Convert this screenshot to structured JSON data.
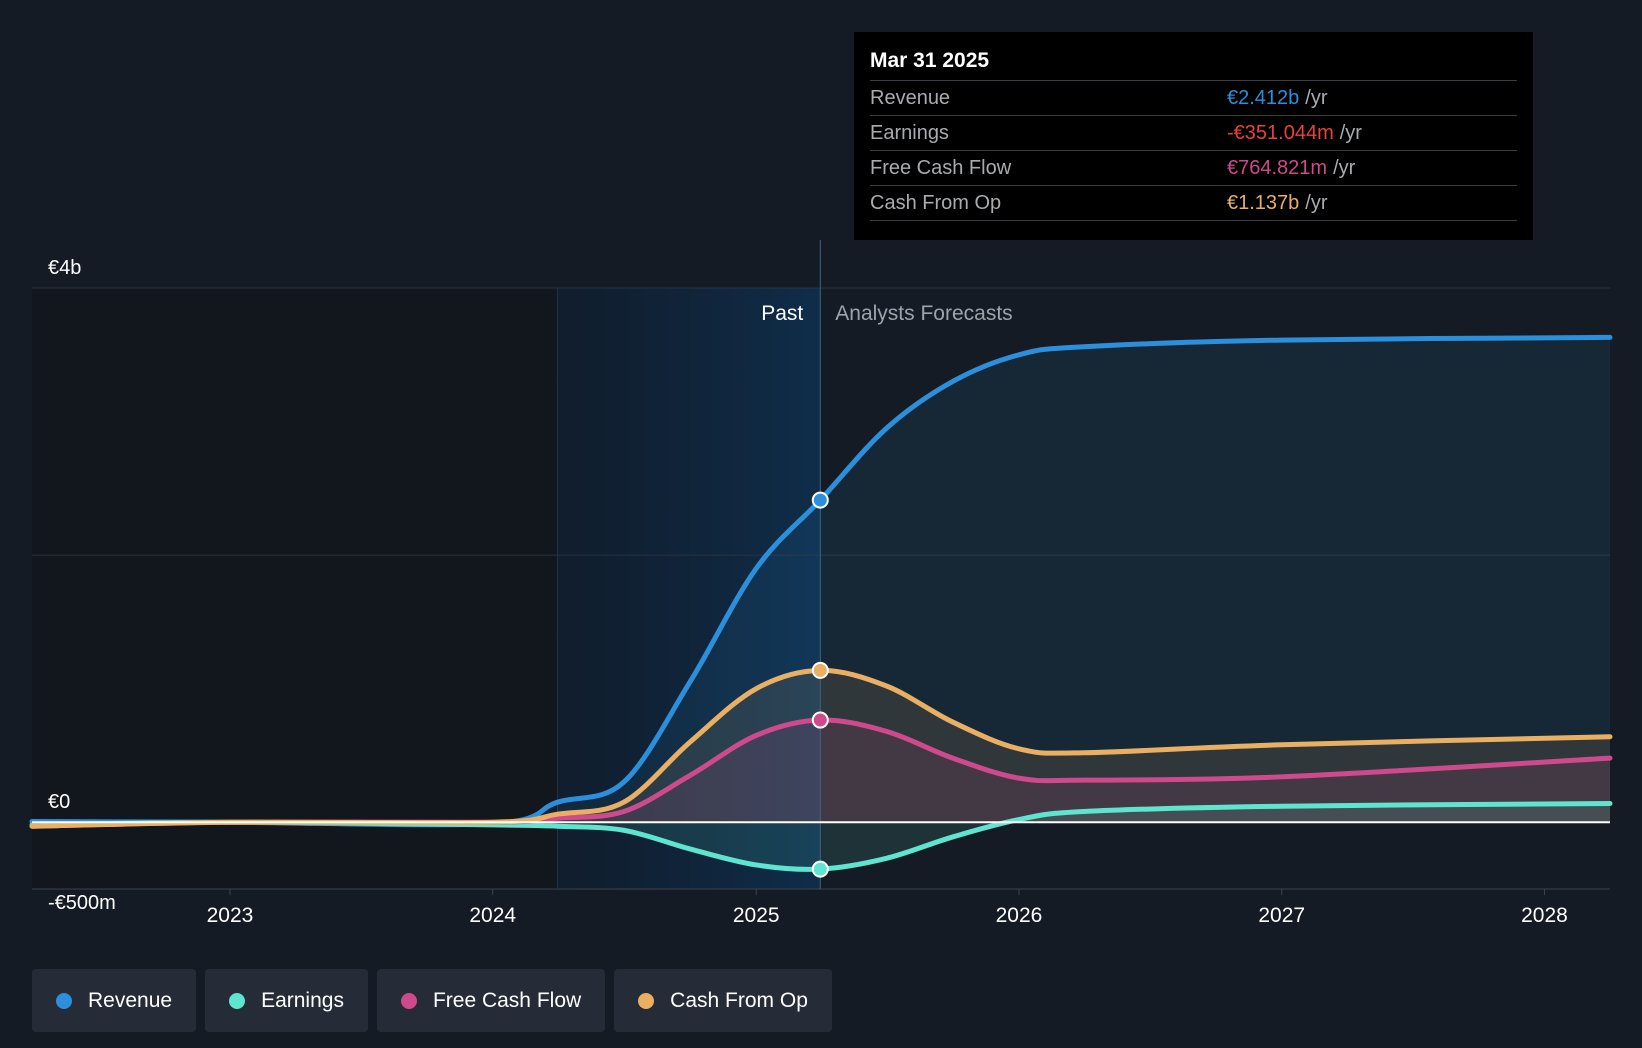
{
  "tooltip": {
    "date": "Mar 31 2025",
    "rows": [
      {
        "label": "Revenue",
        "value": "€2.412b",
        "unit": "/yr",
        "color": "#2b8fdb"
      },
      {
        "label": "Earnings",
        "value": "-€351.044m",
        "unit": "/yr",
        "color": "#e8413e"
      },
      {
        "label": "Free Cash Flow",
        "value": "€764.821m",
        "unit": "/yr",
        "color": "#cf4a8c"
      },
      {
        "label": "Cash From Op",
        "value": "€1.137b",
        "unit": "/yr",
        "color": "#e9b063"
      }
    ]
  },
  "legend": [
    {
      "label": "Revenue",
      "color": "#2b8fdb"
    },
    {
      "label": "Earnings",
      "color": "#5ee4cf"
    },
    {
      "label": "Free Cash Flow",
      "color": "#cf4a8c"
    },
    {
      "label": "Cash From Op",
      "color": "#e9b063"
    }
  ],
  "chart_data": {
    "type": "line",
    "past_label": "Past",
    "forecast_label": "Analysts Forecasts",
    "y_tick_labels": [
      {
        "value": 4000,
        "label": "€4b"
      },
      {
        "value": 0,
        "label": "€0"
      },
      {
        "value": -500,
        "label": "-€500m"
      }
    ],
    "ylim": [
      -500,
      4000
    ],
    "xlim": [
      "2022-04-01",
      "2028-04-01"
    ],
    "x_ticks": [
      {
        "x": "2023-01-01",
        "label": "2023"
      },
      {
        "x": "2024-01-01",
        "label": "2024"
      },
      {
        "x": "2025-01-01",
        "label": "2025"
      },
      {
        "x": "2026-01-01",
        "label": "2026"
      },
      {
        "x": "2027-01-01",
        "label": "2027"
      },
      {
        "x": "2028-01-01",
        "label": "2028"
      }
    ],
    "grid": true,
    "highlight_start": "2024-03-31",
    "current_date": "2025-03-31",
    "series": [
      {
        "name": "Revenue",
        "color": "#2b8fdb",
        "area": true,
        "points": [
          [
            "2022-04-01",
            5
          ],
          [
            "2023-01-01",
            0
          ],
          [
            "2024-01-01",
            -10
          ],
          [
            "2024-03-31",
            150
          ],
          [
            "2024-07-01",
            300
          ],
          [
            "2024-10-01",
            1050
          ],
          [
            "2025-01-01",
            1900
          ],
          [
            "2025-03-31",
            2412
          ],
          [
            "2025-07-01",
            2950
          ],
          [
            "2025-10-01",
            3300
          ],
          [
            "2026-01-01",
            3500
          ],
          [
            "2026-04-01",
            3560
          ],
          [
            "2027-01-01",
            3610
          ],
          [
            "2028-04-01",
            3630
          ]
        ]
      },
      {
        "name": "Earnings",
        "color": "#5ee4cf",
        "area": true,
        "points": [
          [
            "2022-04-01",
            -20
          ],
          [
            "2023-01-01",
            0
          ],
          [
            "2024-01-01",
            -20
          ],
          [
            "2024-03-31",
            -30
          ],
          [
            "2024-07-01",
            -60
          ],
          [
            "2024-10-01",
            -200
          ],
          [
            "2025-01-01",
            -320
          ],
          [
            "2025-03-31",
            -351
          ],
          [
            "2025-07-01",
            -270
          ],
          [
            "2025-10-01",
            -110
          ],
          [
            "2026-01-01",
            20
          ],
          [
            "2026-04-01",
            80
          ],
          [
            "2027-01-01",
            120
          ],
          [
            "2028-04-01",
            140
          ]
        ]
      },
      {
        "name": "Free Cash Flow",
        "color": "#cf4a8c",
        "area": true,
        "points": [
          [
            "2022-04-01",
            -30
          ],
          [
            "2023-01-01",
            0
          ],
          [
            "2024-01-01",
            0
          ],
          [
            "2024-03-31",
            30
          ],
          [
            "2024-07-01",
            80
          ],
          [
            "2024-10-01",
            350
          ],
          [
            "2025-01-01",
            650
          ],
          [
            "2025-03-31",
            765
          ],
          [
            "2025-07-01",
            680
          ],
          [
            "2025-10-01",
            480
          ],
          [
            "2026-01-01",
            330
          ],
          [
            "2026-04-01",
            315
          ],
          [
            "2027-01-01",
            340
          ],
          [
            "2028-04-01",
            480
          ]
        ]
      },
      {
        "name": "Cash From Op",
        "color": "#e9b063",
        "area": true,
        "points": [
          [
            "2022-04-01",
            -30
          ],
          [
            "2023-01-01",
            0
          ],
          [
            "2024-01-01",
            0
          ],
          [
            "2024-03-31",
            60
          ],
          [
            "2024-07-01",
            150
          ],
          [
            "2024-10-01",
            600
          ],
          [
            "2025-01-01",
            1000
          ],
          [
            "2025-03-31",
            1137
          ],
          [
            "2025-07-01",
            1020
          ],
          [
            "2025-10-01",
            750
          ],
          [
            "2026-01-01",
            550
          ],
          [
            "2026-04-01",
            520
          ],
          [
            "2027-01-01",
            580
          ],
          [
            "2028-04-01",
            640
          ]
        ]
      }
    ]
  }
}
